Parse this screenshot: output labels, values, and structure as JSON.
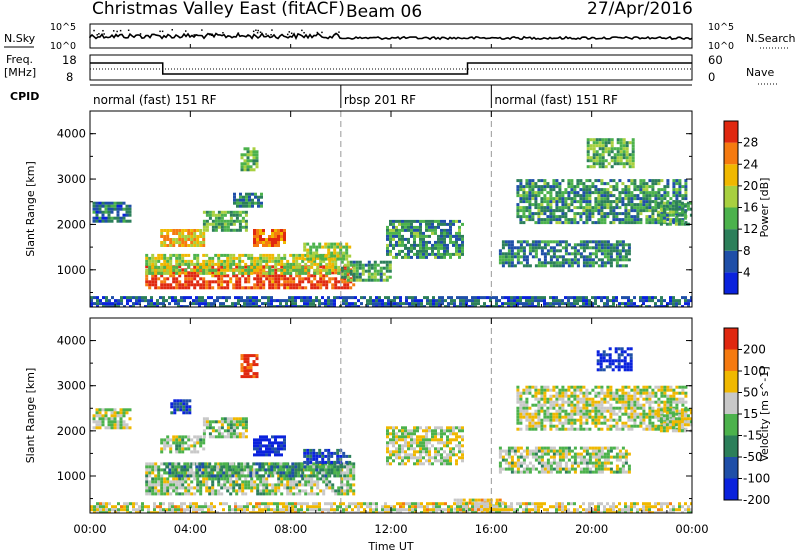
{
  "header": {
    "title": "Christmas Valley East (fitACF)",
    "beam": "Beam 06",
    "date": "27/Apr/2016"
  },
  "noise_panel": {
    "left_label": "N.Sky",
    "right_label": "N.Search",
    "left_ticks": [
      "10^5",
      "10^0"
    ],
    "right_ticks": [
      "10^5",
      "10^0"
    ]
  },
  "freq_panel": {
    "left_label_1": "Freq.",
    "left_label_2": "[MHz]",
    "left_ticks": [
      "18",
      "8"
    ],
    "right_ticks": [
      "60",
      "0"
    ],
    "right_label": "Nave",
    "cpid_label": "CPID",
    "modes": [
      {
        "label": "normal (fast) 151 RF",
        "start_hour": 0
      },
      {
        "label": "rbsp 201 RF",
        "start_hour": 10
      },
      {
        "label": "normal (fast) 151 RF",
        "start_hour": 16
      }
    ]
  },
  "chart_data": [
    {
      "type": "heatmap",
      "name": "power",
      "ylabel": "Slant Range [km]",
      "ylim": [
        180,
        4500
      ],
      "xlim": [
        0,
        24
      ],
      "yticks": [
        1000,
        2000,
        3000,
        4000
      ],
      "colorbar": {
        "label": "Power [dB]",
        "ticks": [
          4,
          8,
          12,
          16,
          20,
          24,
          28
        ],
        "colors": [
          "#0a22dd",
          "#1f4fa8",
          "#2c7f5a",
          "#4cb24c",
          "#a8d040",
          "#f0b800",
          "#f57a10",
          "#e02810"
        ]
      },
      "regions": [
        {
          "t": [
            2.2,
            10.5
          ],
          "r": [
            600,
            1100
          ],
          "level": 0.92
        },
        {
          "t": [
            2.2,
            10.0
          ],
          "r": [
            900,
            1350
          ],
          "level": 0.55
        },
        {
          "t": [
            10.0,
            12.0
          ],
          "r": [
            800,
            1200
          ],
          "level": 0.4
        },
        {
          "t": [
            0.1,
            1.6
          ],
          "r": [
            2050,
            2500
          ],
          "level": 0.25
        },
        {
          "t": [
            2.8,
            4.5
          ],
          "r": [
            1550,
            1900
          ],
          "level": 0.7
        },
        {
          "t": [
            4.5,
            6.2
          ],
          "r": [
            1900,
            2300
          ],
          "level": 0.45
        },
        {
          "t": [
            6.5,
            7.8
          ],
          "r": [
            1550,
            1900
          ],
          "level": 0.85
        },
        {
          "t": [
            8.5,
            10.4
          ],
          "r": [
            1250,
            1600
          ],
          "level": 0.55
        },
        {
          "t": [
            5.7,
            6.8
          ],
          "r": [
            2400,
            2700
          ],
          "level": 0.3
        },
        {
          "t": [
            6.0,
            6.6
          ],
          "r": [
            3200,
            3700
          ],
          "level": 0.45
        },
        {
          "t": [
            11.8,
            14.8
          ],
          "r": [
            1300,
            2100
          ],
          "level": 0.35
        },
        {
          "t": [
            16.3,
            21.5
          ],
          "r": [
            1100,
            1650
          ],
          "level": 0.3
        },
        {
          "t": [
            17.0,
            23.8
          ],
          "r": [
            2050,
            3000
          ],
          "level": 0.35
        },
        {
          "t": [
            19.8,
            21.6
          ],
          "r": [
            3300,
            3900
          ],
          "level": 0.45
        },
        {
          "t": [
            22.6,
            24.0
          ],
          "r": [
            2000,
            2500
          ],
          "level": 0.4
        },
        {
          "t": [
            0.0,
            24.0
          ],
          "r": [
            180,
            420
          ],
          "level": 0.2
        }
      ]
    },
    {
      "type": "heatmap",
      "name": "velocity",
      "ylabel": "Slant Range [km]",
      "ylim": [
        180,
        4500
      ],
      "xlim": [
        0,
        24
      ],
      "yticks": [
        1000,
        2000,
        3000,
        4000
      ],
      "colorbar": {
        "label": "Velocity [m s^-1]",
        "ticks": [
          200,
          100,
          50,
          15,
          -15,
          -50,
          -100,
          -200
        ],
        "colors": [
          "#0a22dd",
          "#1f4fa8",
          "#2c7f5a",
          "#4cb24c",
          "#c8c8c8",
          "#f0b800",
          "#f57a10",
          "#e02810"
        ]
      },
      "regions": [
        {
          "t": [
            2.2,
            10.5
          ],
          "r": [
            600,
            1300
          ],
          "level": 0.5
        },
        {
          "t": [
            3.0,
            10.0
          ],
          "r": [
            1000,
            1300
          ],
          "level": 0.35
        },
        {
          "t": [
            0.1,
            1.6
          ],
          "r": [
            2050,
            2500
          ],
          "level": 0.55
        },
        {
          "t": [
            2.8,
            4.5
          ],
          "r": [
            1550,
            1900
          ],
          "level": 0.52
        },
        {
          "t": [
            4.5,
            6.2
          ],
          "r": [
            1900,
            2300
          ],
          "level": 0.5
        },
        {
          "t": [
            3.2,
            4.0
          ],
          "r": [
            2400,
            2700
          ],
          "level": 0.1
        },
        {
          "t": [
            6.5,
            7.8
          ],
          "r": [
            1500,
            1900
          ],
          "level": 0.05
        },
        {
          "t": [
            8.5,
            10.4
          ],
          "r": [
            1300,
            1600
          ],
          "level": 0.2
        },
        {
          "t": [
            6.0,
            6.6
          ],
          "r": [
            3200,
            3700
          ],
          "level": 0.95
        },
        {
          "t": [
            11.8,
            14.8
          ],
          "r": [
            1300,
            2100
          ],
          "level": 0.55
        },
        {
          "t": [
            14.5,
            16.5
          ],
          "r": [
            180,
            500
          ],
          "level": 0.65
        },
        {
          "t": [
            16.3,
            21.5
          ],
          "r": [
            1100,
            1650
          ],
          "level": 0.52
        },
        {
          "t": [
            17.0,
            23.8
          ],
          "r": [
            2050,
            3000
          ],
          "level": 0.55
        },
        {
          "t": [
            20.2,
            21.6
          ],
          "r": [
            3350,
            3850
          ],
          "level": 0.02
        },
        {
          "t": [
            22.6,
            24.0
          ],
          "r": [
            2000,
            2500
          ],
          "level": 0.55
        },
        {
          "t": [
            0.0,
            24.0
          ],
          "r": [
            180,
            420
          ],
          "level": 0.6
        }
      ]
    }
  ],
  "xaxis": {
    "label": "Time UT",
    "ticks": [
      "00:00",
      "04:00",
      "08:00",
      "12:00",
      "16:00",
      "20:00",
      "00:00"
    ]
  }
}
